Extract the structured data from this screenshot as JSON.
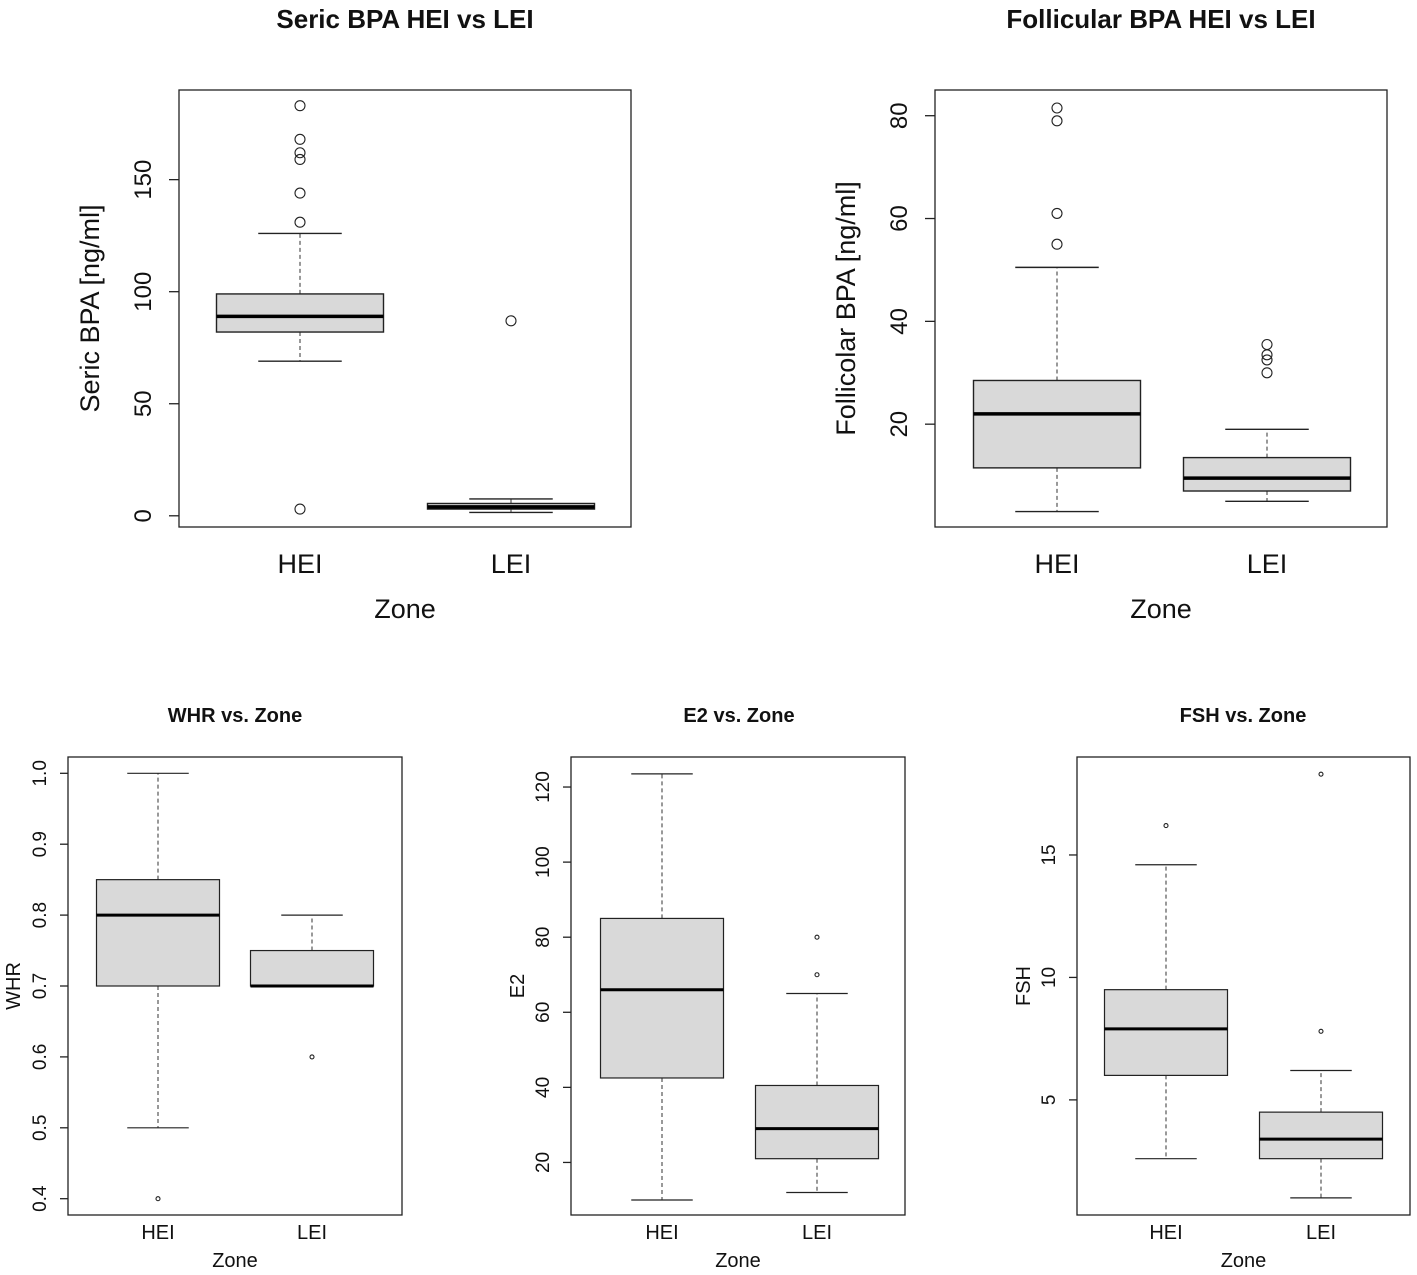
{
  "chart_data": [
    {
      "type": "boxplot",
      "title": "Seric BPA HEI vs LEI",
      "xlabel": "Zone",
      "ylabel": "Seric BPA [ng/ml]",
      "ylim": [
        -5,
        190
      ],
      "yticks": [
        0,
        50,
        100,
        150
      ],
      "categories": [
        "HEI",
        "LEI"
      ],
      "boxes": [
        {
          "name": "HEI",
          "min": 69,
          "q1": 82,
          "median": 89,
          "q3": 99,
          "max": 126,
          "outliers": [
            3,
            131,
            144,
            159,
            162,
            168,
            183
          ]
        },
        {
          "name": "LEI",
          "min": 1.5,
          "q1": 3,
          "median": 4,
          "q3": 5.5,
          "max": 7.5,
          "outliers": [
            87
          ]
        }
      ]
    },
    {
      "type": "boxplot",
      "title": "Follicular BPA HEI vs LEI",
      "xlabel": "Zone",
      "ylabel": "Follicolar BPA [ng/ml]",
      "ylim": [
        0,
        85
      ],
      "yticks": [
        20,
        40,
        60,
        80
      ],
      "categories": [
        "HEI",
        "LEI"
      ],
      "boxes": [
        {
          "name": "HEI",
          "min": 3,
          "q1": 11.5,
          "median": 22,
          "q3": 28.5,
          "max": 50.5,
          "outliers": [
            55,
            61,
            79,
            81.5
          ]
        },
        {
          "name": "LEI",
          "min": 5,
          "q1": 7,
          "median": 9.5,
          "q3": 13.5,
          "max": 19,
          "outliers": [
            30,
            32.5,
            33.5,
            35.5
          ]
        }
      ]
    },
    {
      "type": "boxplot",
      "title": "WHR vs. Zone",
      "xlabel": "Zone",
      "ylabel": "WHR",
      "ylim": [
        0.377,
        1.023
      ],
      "yticks": [
        0.4,
        0.5,
        0.6,
        0.7,
        0.8,
        0.9,
        1.0
      ],
      "tick_labels": [
        "0.4",
        "0.5",
        "0.6",
        "0.7",
        "0.8",
        "0.9",
        "1.0"
      ],
      "categories": [
        "HEI",
        "LEI"
      ],
      "boxes": [
        {
          "name": "HEI",
          "min": 0.5,
          "q1": 0.7,
          "median": 0.8,
          "q3": 0.85,
          "max": 1.0,
          "outliers": [
            0.4
          ]
        },
        {
          "name": "LEI",
          "min": 0.7,
          "q1": 0.7,
          "median": 0.7,
          "q3": 0.75,
          "max": 0.8,
          "outliers": [
            0.6
          ]
        }
      ]
    },
    {
      "type": "boxplot",
      "title": "E2 vs. Zone",
      "xlabel": "Zone",
      "ylabel": "E2",
      "ylim": [
        6,
        128
      ],
      "yticks": [
        20,
        40,
        60,
        80,
        100,
        120
      ],
      "categories": [
        "HEI",
        "LEI"
      ],
      "boxes": [
        {
          "name": "HEI",
          "min": 10,
          "q1": 42.5,
          "median": 66,
          "q3": 85,
          "max": 123.5,
          "outliers": []
        },
        {
          "name": "LEI",
          "min": 12,
          "q1": 21,
          "median": 29,
          "q3": 40.5,
          "max": 65,
          "outliers": [
            70,
            80
          ]
        }
      ]
    },
    {
      "type": "boxplot",
      "title": "FSH vs. Zone",
      "xlabel": "Zone",
      "ylabel": "FSH",
      "ylim": [
        0.3,
        19
      ],
      "yticks": [
        5,
        10,
        15
      ],
      "categories": [
        "HEI",
        "LEI"
      ],
      "boxes": [
        {
          "name": "HEI",
          "min": 2.6,
          "q1": 6.0,
          "median": 7.9,
          "q3": 9.5,
          "max": 14.6,
          "outliers": [
            16.2
          ]
        },
        {
          "name": "LEI",
          "min": 1.0,
          "q1": 2.6,
          "median": 3.4,
          "q3": 4.5,
          "max": 6.2,
          "outliers": [
            7.8,
            18.3
          ]
        }
      ]
    }
  ]
}
